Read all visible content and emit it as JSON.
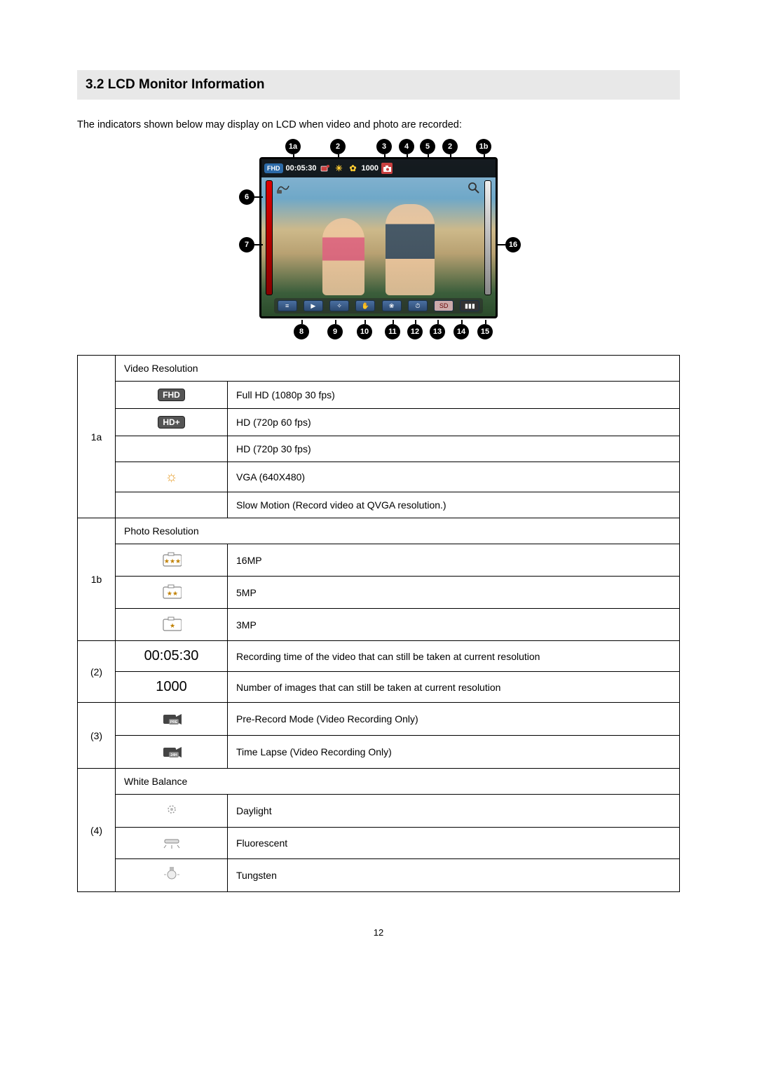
{
  "section_title": "3.2 LCD Monitor Information",
  "intro": "The indicators shown below may display on LCD when video and photo are recorded:",
  "diagram": {
    "top_labels": [
      "1a",
      "2",
      "3",
      "4",
      "5",
      "2",
      "1b"
    ],
    "left_labels": [
      "6",
      "7"
    ],
    "right_labels": [
      "16"
    ],
    "bottom_labels": [
      "8",
      "9",
      "10",
      "11",
      "12",
      "13",
      "14",
      "15"
    ],
    "top_bar": {
      "res_badge": "FHD",
      "time": "00:05:30",
      "count": "1000"
    },
    "colors": {
      "callout_bg": "#000000",
      "callout_fg": "#ffffff",
      "lcd_border": "#000000"
    }
  },
  "table": {
    "rows": [
      {
        "id": "1a",
        "header": "Video Resolution",
        "items": [
          {
            "icon_type": "badge",
            "icon_text": "FHD",
            "desc": "Full HD (1080p 30 fps)"
          },
          {
            "icon_type": "badge",
            "icon_text": "HD+",
            "desc": "HD (720p 60 fps)"
          },
          {
            "icon_type": "blank",
            "icon_text": "",
            "desc": "HD (720p 30 fps)"
          },
          {
            "icon_type": "sun",
            "icon_text": "",
            "desc": "VGA (640X480)"
          },
          {
            "icon_type": "blank",
            "icon_text": "",
            "desc": "Slow Motion (Record video at QVGA resolution.)"
          }
        ]
      },
      {
        "id": "1b",
        "header": "Photo Resolution",
        "items": [
          {
            "icon_type": "photo",
            "star": 3,
            "desc": "16MP"
          },
          {
            "icon_type": "photo",
            "star": 2,
            "desc": "5MP"
          },
          {
            "icon_type": "photo",
            "star": 1,
            "desc": "3MP"
          }
        ]
      },
      {
        "id": "(2)",
        "items": [
          {
            "big": "00:05:30",
            "desc": "Recording time of the video that can still be taken at current resolution"
          },
          {
            "big": "1000",
            "desc": "Number of images that can still be taken at current resolution"
          }
        ]
      },
      {
        "id": "(3)",
        "items": [
          {
            "icon_type": "pre",
            "icon_text": "PRE",
            "desc": "Pre-Record Mode (Video Recording Only)"
          },
          {
            "icon_type": "pre",
            "icon_text": "24H",
            "desc": "Time Lapse (Video Recording Only)"
          }
        ]
      },
      {
        "id": "(4)",
        "header": "White Balance",
        "items": [
          {
            "icon_type": "wb-day",
            "desc": "Daylight"
          },
          {
            "icon_type": "wb-fluor",
            "desc": "Fluorescent"
          },
          {
            "icon_type": "wb-tung",
            "desc": "Tungsten"
          }
        ]
      }
    ]
  },
  "page_number": "12"
}
